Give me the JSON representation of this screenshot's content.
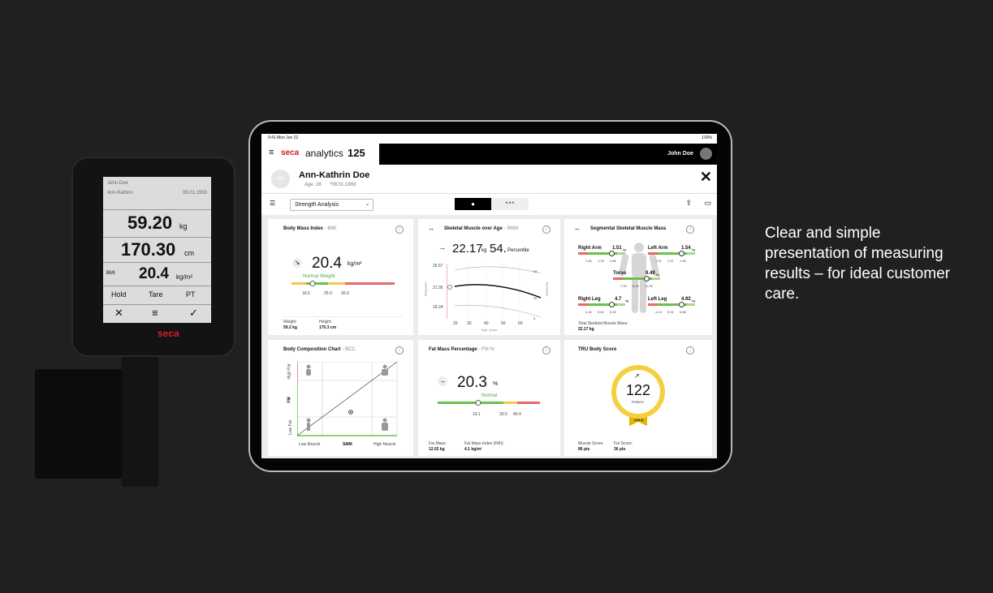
{
  "scale_display": {
    "header": [
      "John Doe",
      "Ann-Kathrin",
      "09.01.1993"
    ],
    "weight": {
      "value": "59.20",
      "unit": "kg"
    },
    "height": {
      "value": "170.30",
      "unit": "cm"
    },
    "bmi": {
      "label": "BMI",
      "value": "20.4",
      "unit": "kg/m²"
    },
    "buttons": [
      "Hold",
      "Tare",
      "PT"
    ],
    "brand": "seca"
  },
  "status_bar": {
    "time": "9:41  Mon Jun 22",
    "battery": "100%"
  },
  "app_bar": {
    "brand": "seca",
    "product": "analytics",
    "version": "125",
    "user": "John Doe"
  },
  "patient": {
    "initials": "AK",
    "name": "Ann-Kathrin Doe",
    "age": "Age: 28",
    "dob": "*09.01.1993"
  },
  "toolbar": {
    "view": "Strength Analysis"
  },
  "cards": {
    "bmi": {
      "title": "Body Mass Index",
      "abbr": "- BMI",
      "value": "20.4",
      "unit": "kg/m²",
      "status": "Normal Weight",
      "ticks": [
        "18.5",
        "25.0",
        "30.0"
      ],
      "footer": [
        {
          "label": "Weight:",
          "value": "59.2 kg"
        },
        {
          "label": "Height:",
          "value": "170.3 cm"
        }
      ]
    },
    "smm": {
      "title": "Skeletal Muscle over Age",
      "abbr": "- SMM",
      "value": "22.17",
      "unit": "kg",
      "percentile": "54.",
      "percentile_label": "Percentile",
      "yticks": [
        "25.67",
        "21.95",
        "18.24"
      ],
      "xticks": [
        "20",
        "30",
        "40",
        "50",
        "60"
      ],
      "xlabel": "Age, years",
      "ylabel": "Kilograms",
      "y2label": "Percentile",
      "y2ticks": [
        "95.",
        "50.",
        "5."
      ]
    },
    "segments": {
      "title": "Segmental Skeletal Muscle Mass",
      "items": [
        {
          "name": "Right Arm",
          "value": "1.51",
          "unit": "kg",
          "ticks": [
            "1.06",
            "1.33",
            "1.66"
          ]
        },
        {
          "name": "Left Arm",
          "value": "1.54",
          "unit": "kg",
          "ticks": [
            "1.02",
            "1.27",
            "1.59"
          ]
        },
        {
          "name": "Torso",
          "value": "9.49",
          "unit": "kg",
          "ticks": [
            "7.33",
            "8.29",
            "11.26"
          ]
        },
        {
          "name": "Right Leg",
          "value": "4.7",
          "unit": "kg",
          "ticks": [
            "4.16",
            "5.04",
            "5.92"
          ]
        },
        {
          "name": "Left Leg",
          "value": "4.92",
          "unit": "kg",
          "ticks": [
            "4.13",
            "5.01",
            "5.88"
          ]
        }
      ],
      "footer": {
        "label": "Total Skeletal Muscle Mass:",
        "value": "22.17 kg"
      }
    },
    "bcc": {
      "title": "Body Composition Chart",
      "abbr": "- BCC",
      "ylabels": [
        "High Fat",
        "FM",
        "Low Fat"
      ],
      "xlabels": [
        "Low Muscle",
        "SMM",
        "High Muscle"
      ]
    },
    "fm": {
      "title": "Fat Mass Percentage",
      "abbr": "- FM %",
      "value": "20.3",
      "unit": "%",
      "status": "Normal",
      "ticks": [
        "19.1",
        "33.5",
        "40.4"
      ],
      "footer": [
        {
          "label": "Fat Mass:",
          "value": "12.02 kg"
        },
        {
          "label": "Fat Mass Index (FMI):",
          "value": "4.1 kg/m²"
        }
      ]
    },
    "score": {
      "title": "TRU Body Score",
      "value": "122",
      "unit": "POINTS",
      "badge": "GOLD",
      "footer": [
        {
          "label": "Muscle Score:",
          "value": "86 pts"
        },
        {
          "label": "Fat Score:",
          "value": "36 pts"
        }
      ]
    }
  },
  "tagline": "Clear and simple presentation of measuring results – for ideal customer care."
}
